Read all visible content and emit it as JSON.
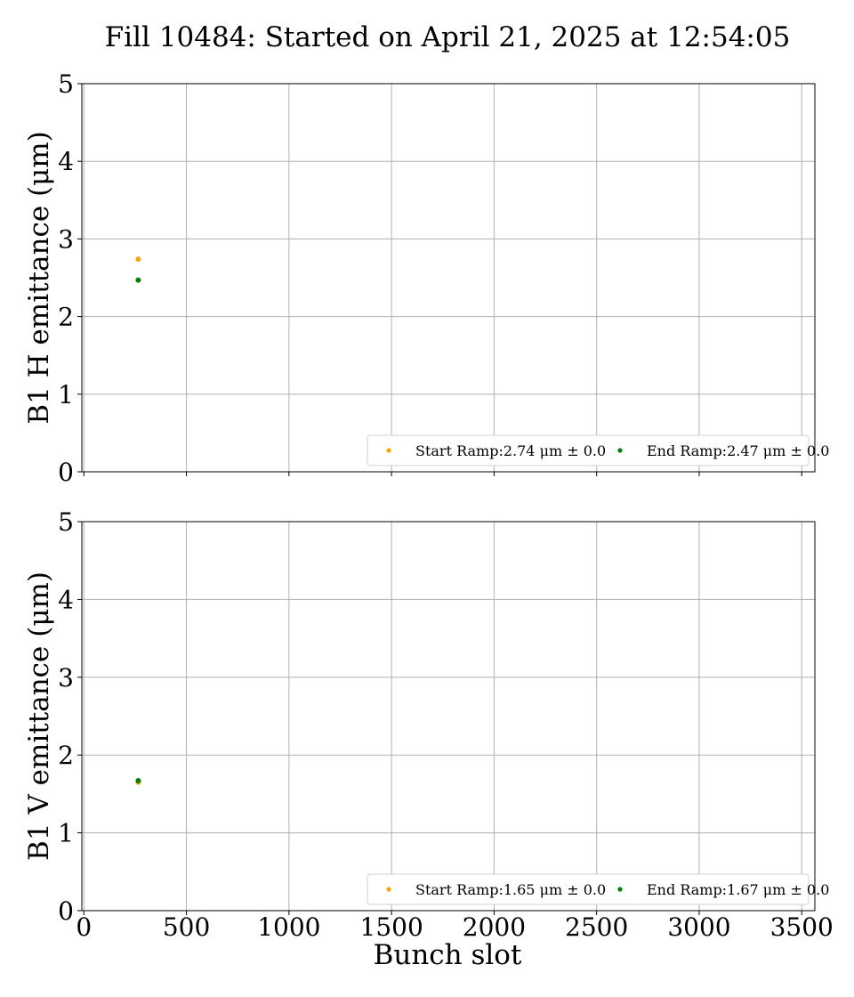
{
  "title": "Fill 10484: Started on April 21, 2025 at 12:54:05",
  "xlabel": "Bunch slot",
  "colors": {
    "start": "#ffa500",
    "end": "#008000"
  },
  "chart_data": [
    {
      "type": "scatter",
      "ylabel": "B1 H emittance (μm)",
      "xlim": [
        -10,
        3564
      ],
      "ylim": [
        0,
        5
      ],
      "xticks": [
        0,
        500,
        1000,
        1500,
        2000,
        2500,
        3000,
        3500
      ],
      "yticks": [
        0,
        1,
        2,
        3,
        4,
        5
      ],
      "grid": true,
      "legend_position": "lower-right",
      "series": [
        {
          "name": "Start Ramp:2.74 μm ± 0.0",
          "x": [
            265
          ],
          "y": [
            2.74
          ]
        },
        {
          "name": "End Ramp:2.47 μm ± 0.0",
          "x": [
            265
          ],
          "y": [
            2.47
          ]
        }
      ]
    },
    {
      "type": "scatter",
      "ylabel": "B1 V emittance (μm)",
      "xlim": [
        -10,
        3564
      ],
      "ylim": [
        0,
        5
      ],
      "xticks": [
        0,
        500,
        1000,
        1500,
        2000,
        2500,
        3000,
        3500
      ],
      "yticks": [
        0,
        1,
        2,
        3,
        4,
        5
      ],
      "grid": true,
      "legend_position": "lower-right",
      "series": [
        {
          "name": "Start Ramp:1.65 μm ± 0.0",
          "x": [
            265
          ],
          "y": [
            1.65
          ]
        },
        {
          "name": "End Ramp:1.67 μm ± 0.0",
          "x": [
            265
          ],
          "y": [
            1.67
          ]
        }
      ]
    }
  ]
}
